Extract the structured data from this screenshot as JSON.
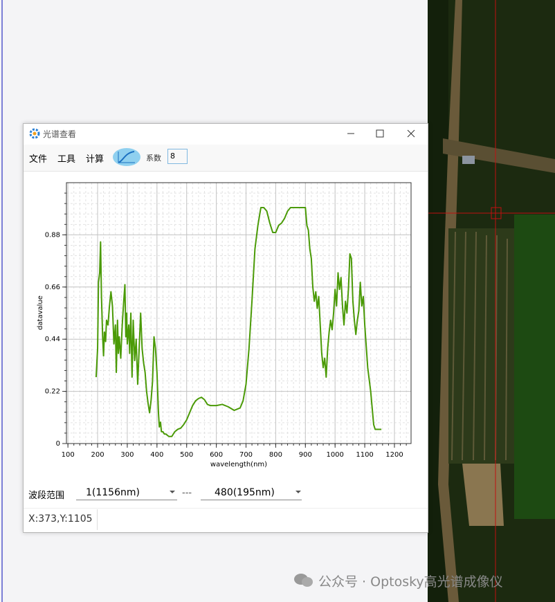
{
  "window": {
    "title": "光谱查看",
    "menu": [
      "文件",
      "工具",
      "计算"
    ],
    "coefficient_label": "系数",
    "coefficient_value": "8",
    "band_range_label": "波段范围",
    "band_start": "1(1156nm)",
    "separator": "---",
    "band_end": "480(195nm)",
    "status": "X:373,Y:1105"
  },
  "watermark": "公众号 · Optosky高光谱成像仪",
  "chart_data": {
    "type": "line",
    "x_label": "wavelength(nm)",
    "y_label": "datavalue",
    "color": "#4a9a06",
    "grid": true,
    "minor_grid": true,
    "xlim": [
      95,
      1256
    ],
    "ylim": [
      0,
      1.1
    ],
    "xticks": [
      100,
      200,
      300,
      400,
      500,
      600,
      700,
      800,
      900,
      1000,
      1100,
      1200
    ],
    "yticks": [
      0,
      0.22,
      0.44,
      0.66,
      0.88
    ],
    "x": [
      195,
      200,
      203,
      207,
      210,
      213,
      217,
      220,
      223,
      227,
      230,
      235,
      240,
      245,
      250,
      255,
      260,
      263,
      267,
      270,
      273,
      278,
      283,
      288,
      292,
      295,
      298,
      300,
      305,
      308,
      312,
      316,
      320,
      325,
      330,
      335,
      340,
      345,
      350,
      355,
      360,
      365,
      370,
      375,
      380,
      385,
      390,
      395,
      400,
      405,
      408,
      412,
      415,
      420,
      425,
      430,
      440,
      450,
      460,
      470,
      480,
      490,
      500,
      510,
      520,
      530,
      540,
      550,
      560,
      570,
      580,
      600,
      620,
      640,
      660,
      680,
      690,
      700,
      710,
      720,
      730,
      740,
      750,
      760,
      770,
      780,
      790,
      800,
      810,
      820,
      830,
      840,
      850,
      870,
      890,
      900,
      905,
      910,
      915,
      920,
      925,
      930,
      935,
      940,
      945,
      950,
      955,
      960,
      965,
      970,
      975,
      980,
      985,
      990,
      995,
      1000,
      1005,
      1010,
      1015,
      1020,
      1025,
      1030,
      1035,
      1040,
      1045,
      1050,
      1055,
      1060,
      1065,
      1070,
      1075,
      1080,
      1085,
      1090,
      1095,
      1100,
      1110,
      1120,
      1125,
      1130,
      1135,
      1140,
      1156
    ],
    "values": [
      0.28,
      0.4,
      0.68,
      0.72,
      0.85,
      0.62,
      0.45,
      0.37,
      0.47,
      0.43,
      0.52,
      0.5,
      0.58,
      0.64,
      0.58,
      0.42,
      0.5,
      0.3,
      0.52,
      0.38,
      0.45,
      0.36,
      0.5,
      0.6,
      0.67,
      0.45,
      0.55,
      0.42,
      0.5,
      0.38,
      0.55,
      0.28,
      0.52,
      0.35,
      0.44,
      0.25,
      0.4,
      0.55,
      0.4,
      0.34,
      0.3,
      0.22,
      0.17,
      0.13,
      0.18,
      0.26,
      0.45,
      0.4,
      0.3,
      0.13,
      0.07,
      0.09,
      0.05,
      0.05,
      0.04,
      0.04,
      0.03,
      0.03,
      0.05,
      0.06,
      0.065,
      0.08,
      0.1,
      0.13,
      0.16,
      0.18,
      0.19,
      0.195,
      0.185,
      0.165,
      0.16,
      0.16,
      0.165,
      0.155,
      0.14,
      0.15,
      0.18,
      0.25,
      0.4,
      0.6,
      0.82,
      0.92,
      0.995,
      0.995,
      0.98,
      0.93,
      0.89,
      0.89,
      0.92,
      0.93,
      0.95,
      0.98,
      0.995,
      0.995,
      0.995,
      0.995,
      0.92,
      0.9,
      0.82,
      0.78,
      0.66,
      0.6,
      0.64,
      0.57,
      0.62,
      0.5,
      0.38,
      0.32,
      0.36,
      0.28,
      0.4,
      0.47,
      0.52,
      0.48,
      0.55,
      0.65,
      0.58,
      0.72,
      0.65,
      0.7,
      0.58,
      0.5,
      0.6,
      0.55,
      0.65,
      0.8,
      0.78,
      0.6,
      0.52,
      0.46,
      0.52,
      0.56,
      0.68,
      0.58,
      0.62,
      0.5,
      0.32,
      0.22,
      0.15,
      0.08,
      0.06,
      0.06,
      0.06
    ]
  }
}
